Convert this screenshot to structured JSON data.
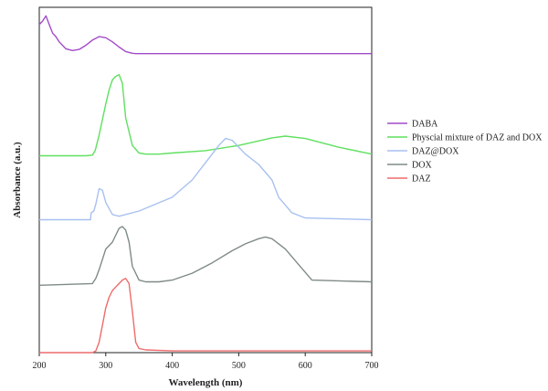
{
  "chart_data": {
    "type": "line",
    "title": "",
    "xlabel": "Wavelength (nm)",
    "ylabel": "Absorbance (a.u.)",
    "xlim": [
      200,
      700
    ],
    "xticks": [
      "200",
      "300",
      "400",
      "500",
      "600",
      "700"
    ],
    "ylim": [
      0,
      1
    ],
    "grid": false,
    "legend_position": "right",
    "series": [
      {
        "name": "DABA",
        "color": "#a24bc9",
        "x": [
          200,
          205,
          210,
          215,
          220,
          225,
          230,
          240,
          250,
          260,
          270,
          280,
          290,
          300,
          310,
          320,
          330,
          340,
          345,
          350,
          360,
          400,
          500,
          600,
          700
        ],
        "y": [
          0.95,
          0.96,
          0.975,
          0.95,
          0.925,
          0.915,
          0.9,
          0.88,
          0.875,
          0.878,
          0.89,
          0.905,
          0.915,
          0.912,
          0.9,
          0.885,
          0.872,
          0.867,
          0.866,
          0.866,
          0.866,
          0.866,
          0.866,
          0.866,
          0.866
        ]
      },
      {
        "name": "Physcial mixture of DAZ and DOX",
        "color": "#5fe05f",
        "x": [
          200,
          270,
          280,
          284,
          290,
          300,
          305,
          310,
          315,
          320,
          325,
          330,
          340,
          350,
          360,
          370,
          380,
          400,
          450,
          500,
          550,
          570,
          600,
          650,
          700
        ],
        "y": [
          0.57,
          0.57,
          0.572,
          0.585,
          0.63,
          0.72,
          0.76,
          0.79,
          0.8,
          0.805,
          0.78,
          0.68,
          0.6,
          0.578,
          0.575,
          0.575,
          0.575,
          0.578,
          0.585,
          0.6,
          0.622,
          0.627,
          0.62,
          0.595,
          0.575
        ]
      },
      {
        "name": "DAZ@DOX",
        "color": "#a8c0f0",
        "x": [
          200,
          270,
          277,
          278,
          282,
          285,
          290,
          295,
          300,
          310,
          320,
          350,
          400,
          430,
          450,
          470,
          480,
          490,
          500,
          510,
          530,
          550,
          560,
          580,
          600,
          700
        ],
        "y": [
          0.385,
          0.385,
          0.385,
          0.405,
          0.41,
          0.43,
          0.475,
          0.47,
          0.435,
          0.4,
          0.395,
          0.41,
          0.45,
          0.5,
          0.55,
          0.6,
          0.62,
          0.615,
          0.595,
          0.575,
          0.545,
          0.5,
          0.45,
          0.405,
          0.39,
          0.385
        ]
      },
      {
        "name": "DOX",
        "color": "#7f8b86",
        "x": [
          200,
          280,
          285,
          290,
          300,
          310,
          315,
          320,
          325,
          330,
          335,
          340,
          350,
          360,
          380,
          400,
          430,
          460,
          490,
          510,
          530,
          540,
          550,
          570,
          590,
          610,
          700
        ],
        "y": [
          0.195,
          0.2,
          0.215,
          0.24,
          0.3,
          0.32,
          0.34,
          0.36,
          0.365,
          0.355,
          0.32,
          0.25,
          0.21,
          0.205,
          0.205,
          0.21,
          0.23,
          0.26,
          0.295,
          0.315,
          0.33,
          0.335,
          0.33,
          0.3,
          0.255,
          0.21,
          0.205
        ]
      },
      {
        "name": "DAZ",
        "color": "#ee6b6b",
        "x": [
          200,
          280,
          285,
          290,
          295,
          300,
          305,
          310,
          315,
          320,
          325,
          330,
          335,
          340,
          345,
          350,
          360,
          400,
          500,
          600,
          700
        ],
        "y": [
          0.0,
          0.0,
          0.005,
          0.03,
          0.08,
          0.13,
          0.16,
          0.18,
          0.19,
          0.2,
          0.21,
          0.215,
          0.2,
          0.12,
          0.03,
          0.012,
          0.008,
          0.005,
          0.005,
          0.005,
          0.005
        ]
      }
    ]
  }
}
